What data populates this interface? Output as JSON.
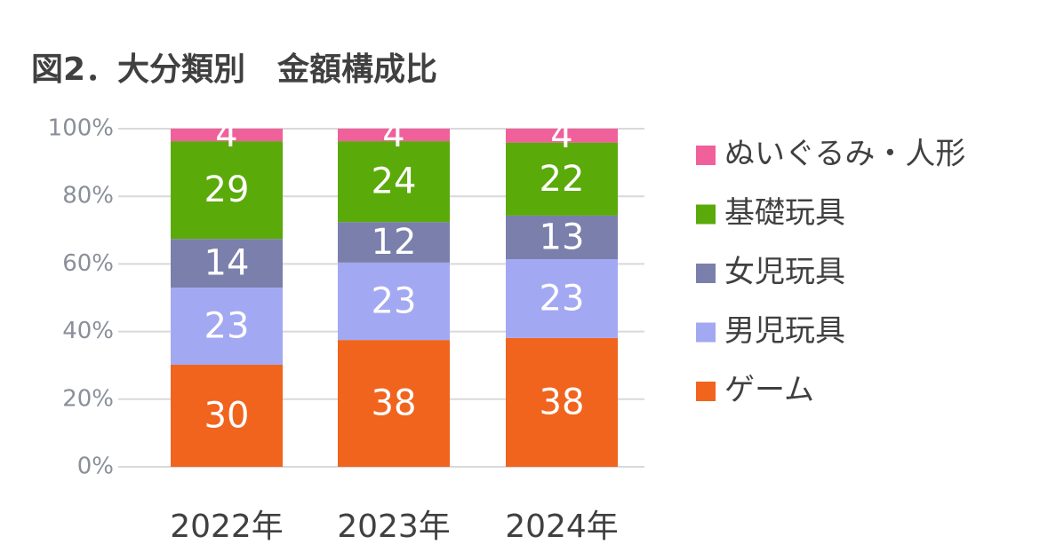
{
  "chart_data": {
    "type": "stacked_bar",
    "title": "図2．大分類別　金額構成比",
    "categories": [
      "2022年",
      "2023年",
      "2024年"
    ],
    "series": [
      {
        "name": "ゲーム",
        "color": "#f0641e",
        "values": [
          30.2,
          37.5,
          38.1
        ],
        "value_labels": [
          "30",
          "38",
          "38"
        ]
      },
      {
        "name": "男児玩具",
        "color": "#a3a8f2",
        "values": [
          22.8,
          22.9,
          23.3
        ],
        "value_labels": [
          "23",
          "23",
          "23"
        ]
      },
      {
        "name": "女児玩具",
        "color": "#7b7fac",
        "values": [
          14.4,
          12.0,
          12.9
        ],
        "value_labels": [
          "14",
          "12",
          "13"
        ]
      },
      {
        "name": "基礎玩具",
        "color": "#5aaa0a",
        "values": [
          28.9,
          23.9,
          21.6
        ],
        "value_labels": [
          "29",
          "24",
          "22"
        ]
      },
      {
        "name": "ぬいぐるみ・人形",
        "color": "#f0609a",
        "values": [
          3.7,
          3.7,
          4.1
        ],
        "value_labels": [
          "4",
          "4",
          "4"
        ]
      }
    ],
    "ylim": [
      0,
      100
    ],
    "yticks": [
      {
        "value": 0,
        "label": "0%"
      },
      {
        "value": 20,
        "label": "20%"
      },
      {
        "value": 40,
        "label": "40%"
      },
      {
        "value": 60,
        "label": "60%"
      },
      {
        "value": 80,
        "label": "80%"
      },
      {
        "value": 100,
        "label": "100%"
      }
    ],
    "grid": true,
    "legend": "right"
  }
}
